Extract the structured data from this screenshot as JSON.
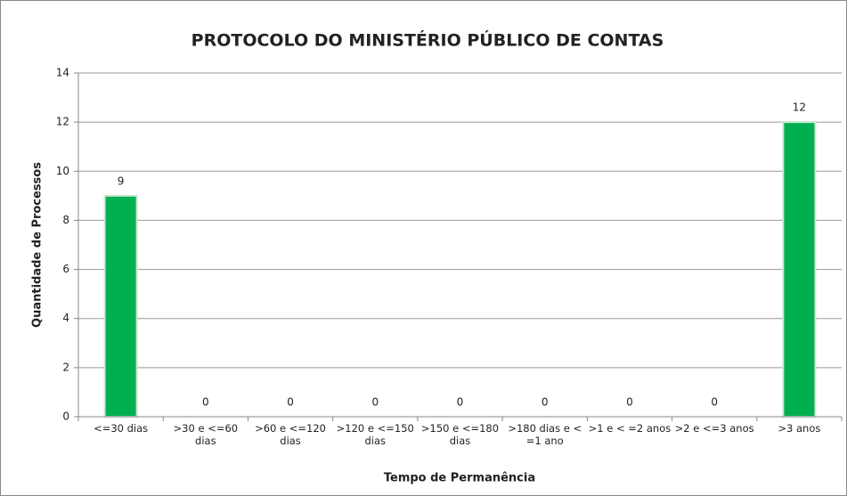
{
  "chart_data": {
    "type": "bar",
    "title": "PROTOCOLO DO MINISTÉRIO PÚBLICO DE CONTAS",
    "xlabel": "Tempo de Permanência",
    "ylabel": "Quantidade de Processos",
    "categories": [
      "<=30 dias",
      ">30 e <=60 dias",
      ">60 e <=120 dias",
      ">120 e <=150 dias",
      ">150 e <=180 dias",
      ">180 dias e < =1 ano",
      ">1 e < =2 anos",
      ">2 e <=3 anos",
      ">3 anos"
    ],
    "values": [
      9,
      0,
      0,
      0,
      0,
      0,
      0,
      0,
      12
    ],
    "color": "#00b050",
    "ylim": [
      0,
      14
    ],
    "yticks": [
      0,
      2,
      4,
      6,
      8,
      10,
      12,
      14
    ],
    "grid": true
  }
}
